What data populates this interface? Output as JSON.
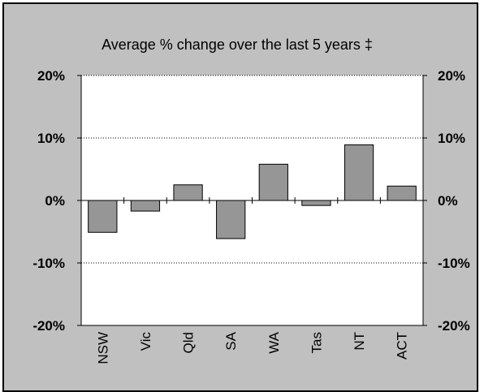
{
  "chart_data": {
    "type": "bar",
    "title": "Average % change over the last 5 years ‡",
    "xlabel": "",
    "ylabel": "",
    "categories": [
      "NSW",
      "Vic",
      "Qld",
      "SA",
      "WA",
      "Tas",
      "NT",
      "ACT"
    ],
    "values": [
      -5.1,
      -1.7,
      2.5,
      -6.1,
      5.8,
      -0.8,
      8.9,
      2.3
    ],
    "ylim": [
      -20,
      20
    ],
    "yticks": [
      "20%",
      "10%",
      "0%",
      "-10%",
      "-20%"
    ],
    "ytick_values": [
      20,
      10,
      0,
      -10,
      -20
    ],
    "y_axis_right": true,
    "grid": "horizontal dotted",
    "legend": "none",
    "colors": {
      "bar_fill": "#969696",
      "plot_background": "#ffffff",
      "frame_background": "#c0c0c0",
      "axis": "#000000"
    }
  }
}
